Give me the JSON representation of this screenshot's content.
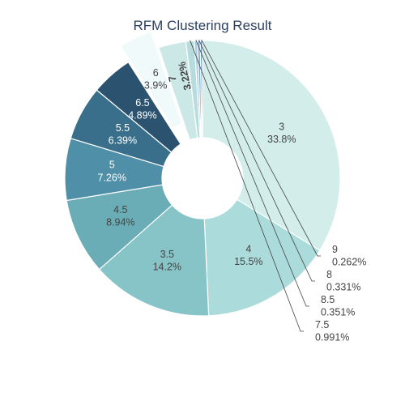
{
  "chart_data": {
    "type": "pie",
    "title": "RFM Clustering Result",
    "hole": true,
    "categories": [
      "3",
      "4",
      "3.5",
      "4.5",
      "5",
      "5.5",
      "6.5",
      "6",
      "7",
      "7.5",
      "8.5",
      "8",
      "9"
    ],
    "percent_labels": [
      "33.8%",
      "15.5%",
      "14.2%",
      "8.94%",
      "7.26%",
      "6.39%",
      "4.89%",
      "3.9%",
      "3.22%",
      "0.991%",
      "0.351%",
      "0.331%",
      "0.262%"
    ],
    "values": [
      33.8,
      15.5,
      14.2,
      8.94,
      7.26,
      6.39,
      4.89,
      3.9,
      3.22,
      0.991,
      0.351,
      0.331,
      0.262
    ],
    "colors": [
      "#d3eeea",
      "#abdbda",
      "#87c4c8",
      "#6aadb7",
      "#4f8fa7",
      "#396f8a",
      "#2b536f",
      "#f1fafa",
      "#cbe7e6",
      "#b7dcde",
      "#a4cadf",
      "#82aed3",
      "#6a97c4"
    ],
    "pulled": [
      "6"
    ]
  }
}
